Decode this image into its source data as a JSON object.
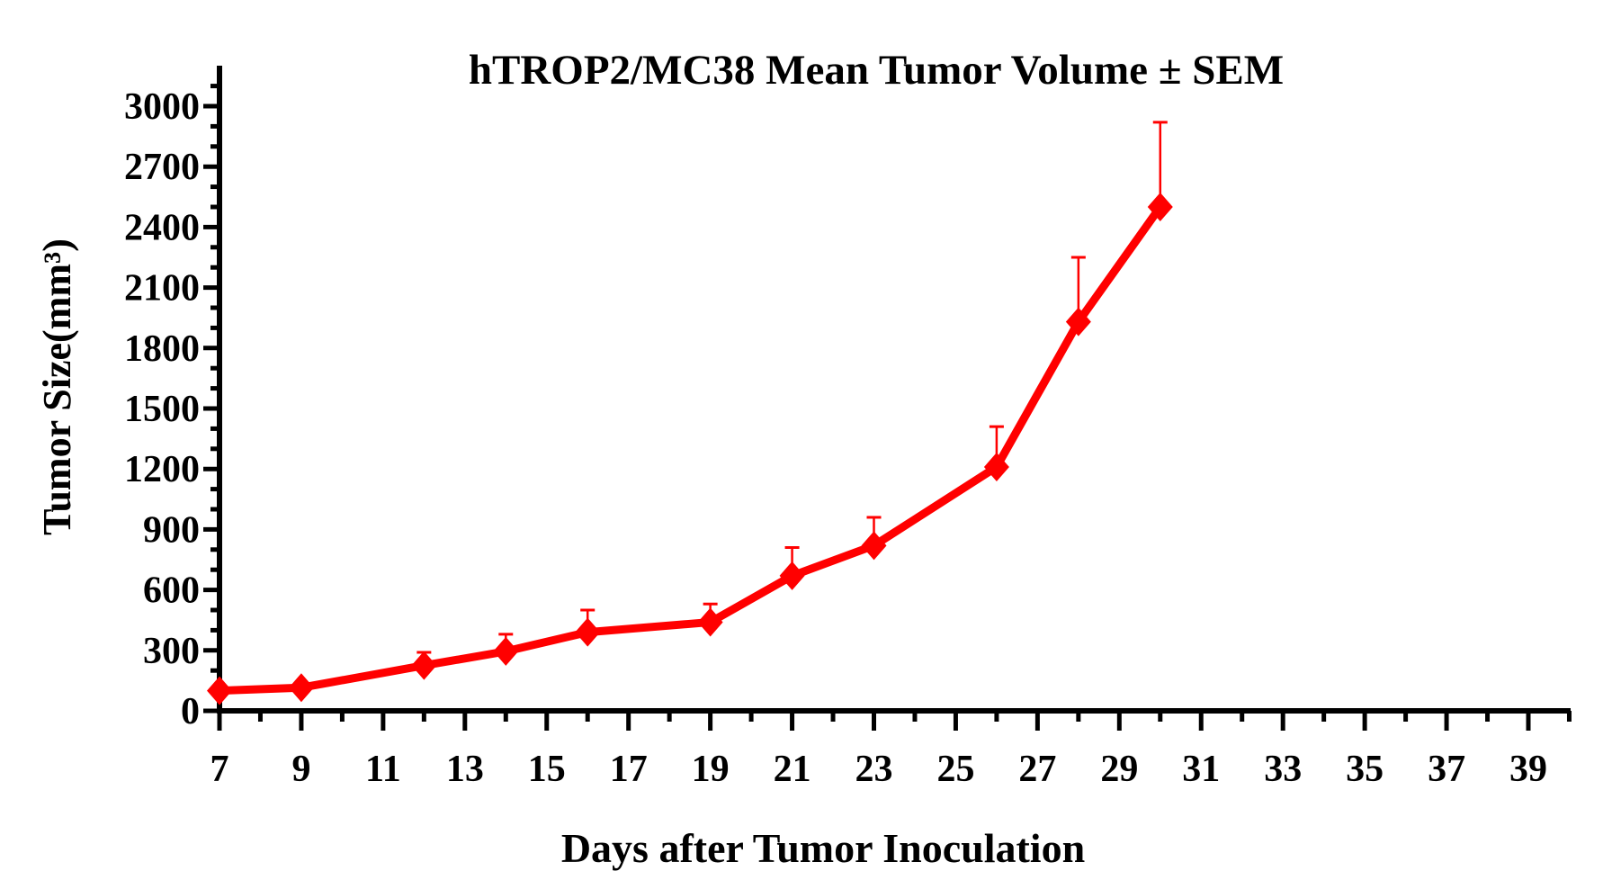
{
  "chart_data": {
    "type": "line",
    "title": "hTROP2/MC38 Mean Tumor Volume ± SEM",
    "xlabel": "Days after Tumor Inoculation",
    "ylabel": "Tumor Size(mm³)",
    "xlim": [
      7,
      40
    ],
    "ylim": [
      0,
      3100
    ],
    "xticks": [
      7,
      9,
      11,
      13,
      15,
      17,
      19,
      21,
      23,
      25,
      27,
      29,
      31,
      33,
      35,
      37,
      39
    ],
    "yticks": [
      0,
      300,
      600,
      900,
      1200,
      1500,
      1800,
      2100,
      2400,
      2700,
      3000
    ],
    "grid": false,
    "legend": "none",
    "series": [
      {
        "color": "#ff0000",
        "marker": "diamond",
        "x": [
          7,
          9,
          12,
          14,
          16,
          19,
          21,
          23,
          26,
          28,
          30
        ],
        "y": [
          100,
          115,
          225,
          295,
          390,
          440,
          670,
          820,
          1210,
          1930,
          2500
        ],
        "sem_upper": [
          null,
          null,
          290,
          380,
          500,
          530,
          810,
          960,
          1410,
          2250,
          2920
        ]
      }
    ]
  }
}
